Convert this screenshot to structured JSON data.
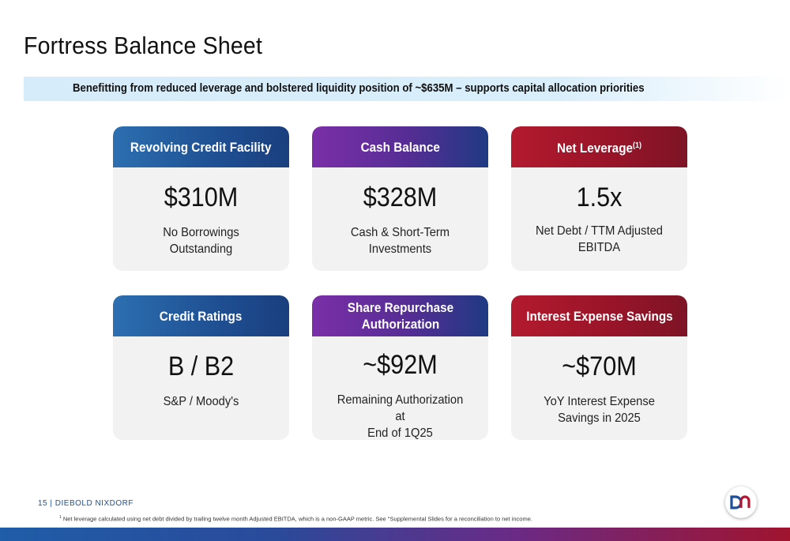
{
  "slide": {
    "title": "Fortress Balance Sheet",
    "banner": "Benefitting from reduced leverage and bolstered liquidity position of ~$635M – supports capital allocation priorities"
  },
  "cards": [
    {
      "header": "Revolving Credit Facility",
      "header_sup": "",
      "value": "$310M",
      "desc_line1": "No Borrowings",
      "desc_line2": "Outstanding",
      "color": "#1e4f92"
    },
    {
      "header": "Cash Balance",
      "header_sup": "",
      "value": "$328M",
      "desc_line1": "Cash & Short-Term",
      "desc_line2": "Investments",
      "color": "#552d94"
    },
    {
      "header": "Net Leverage",
      "header_sup": "(1)",
      "value": "1.5x",
      "desc_line1": "Net Debt / TTM Adjusted",
      "desc_line2": "EBITDA",
      "color": "#971428"
    },
    {
      "header": "Credit Ratings",
      "header_sup": "",
      "value": "B / B2",
      "desc_line1": "S&P / Moody's",
      "desc_line2": "",
      "color": "#1e4f92"
    },
    {
      "header": "Share Repurchase Authorization",
      "header_sup": "",
      "value": "~$92M",
      "desc_line1": "Remaining Authorization at",
      "desc_line2": "End of 1Q25",
      "color": "#552d94"
    },
    {
      "header": "Interest Expense Savings",
      "header_sup": "",
      "value": "~$70M",
      "desc_line1": "YoY Interest Expense",
      "desc_line2": "Savings in 2025",
      "color": "#971428"
    }
  ],
  "footer": {
    "page": "15 | DIEBOLD NIXDORF",
    "footnote_marker": "1",
    "footnote": "Net leverage calculated using net debt divided by trailing twelve month Adjusted EBITDA, which is a non-GAAP metric. See \"Supplemental Slides for a reconciliation to net income.",
    "logo_icon": "dn-logo-icon"
  }
}
